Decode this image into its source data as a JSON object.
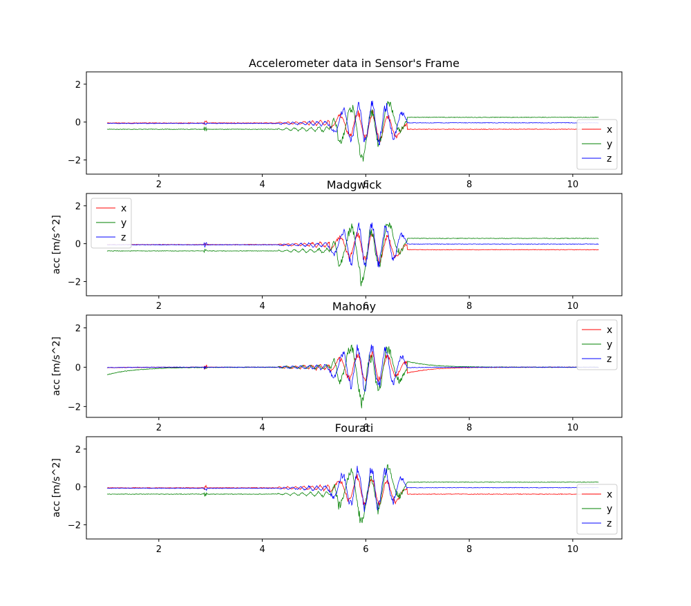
{
  "chart_data": [
    {
      "type": "line",
      "title": "Accelerometer data in Sensor's Frame",
      "xlabel": "",
      "ylabel": "",
      "xlim": [
        0.6,
        10.95
      ],
      "ylim": [
        -2.75,
        2.65
      ],
      "xticks": [
        2,
        4,
        6,
        8,
        10
      ],
      "yticks": [
        2,
        0,
        -2
      ],
      "ytick_labels": [
        "2",
        "0",
        "−2"
      ],
      "legend": "bottom-right",
      "model": "offset",
      "series": [
        {
          "name": "x",
          "color": "#ff0000",
          "baseline_before": -0.05,
          "baseline_after": -0.38
        },
        {
          "name": "y",
          "color": "#008000",
          "baseline_before": -0.38,
          "baseline_after": 0.25
        },
        {
          "name": "z",
          "color": "#0000ff",
          "baseline_before": -0.07,
          "baseline_after": -0.04
        }
      ]
    },
    {
      "type": "line",
      "title": "Madgwick",
      "xlabel": "",
      "ylabel": "acc [m/s^2]",
      "xlim": [
        0.6,
        10.95
      ],
      "ylim": [
        -2.75,
        2.65
      ],
      "xticks": [
        2,
        4,
        6,
        8,
        10
      ],
      "yticks": [
        2,
        0,
        -2
      ],
      "ytick_labels": [
        "2",
        "0",
        "−2"
      ],
      "legend": "top-left",
      "model": "offset",
      "series": [
        {
          "name": "x",
          "color": "#ff0000",
          "baseline_before": -0.05,
          "baseline_after": -0.32
        },
        {
          "name": "y",
          "color": "#008000",
          "baseline_before": -0.38,
          "baseline_after": 0.28
        },
        {
          "name": "z",
          "color": "#0000ff",
          "baseline_before": -0.06,
          "baseline_after": -0.02
        }
      ]
    },
    {
      "type": "line",
      "title": "Mahony",
      "xlabel": "",
      "ylabel": "acc [m/s^2]",
      "xlim": [
        0.6,
        10.95
      ],
      "ylim": [
        -2.55,
        2.65
      ],
      "xticks": [
        2,
        4,
        6,
        8,
        10
      ],
      "yticks": [
        2,
        0,
        -2
      ],
      "ytick_labels": [
        "2",
        "0",
        "−2"
      ],
      "legend": "top-right",
      "model": "decay",
      "series": [
        {
          "name": "x",
          "color": "#ff0000",
          "baseline_before": -0.02,
          "baseline_after": -0.3
        },
        {
          "name": "y",
          "color": "#008000",
          "baseline_before": -0.38,
          "baseline_after": 0.3
        },
        {
          "name": "z",
          "color": "#0000ff",
          "baseline_before": -0.02,
          "baseline_after": -0.02
        }
      ]
    },
    {
      "type": "line",
      "title": "Fourati",
      "xlabel": "",
      "ylabel": "acc [m/s^2]",
      "xlim": [
        0.6,
        10.95
      ],
      "ylim": [
        -2.75,
        2.65
      ],
      "xticks": [
        2,
        4,
        6,
        8,
        10
      ],
      "yticks": [
        2,
        0,
        -2
      ],
      "ytick_labels": [
        "2",
        "0",
        "−2"
      ],
      "legend": "bottom-right",
      "model": "offset",
      "series": [
        {
          "name": "x",
          "color": "#ff0000",
          "baseline_before": -0.05,
          "baseline_after": -0.38
        },
        {
          "name": "y",
          "color": "#008000",
          "baseline_before": -0.38,
          "baseline_after": 0.25
        },
        {
          "name": "z",
          "color": "#0000ff",
          "baseline_before": -0.07,
          "baseline_after": -0.04
        }
      ]
    }
  ]
}
